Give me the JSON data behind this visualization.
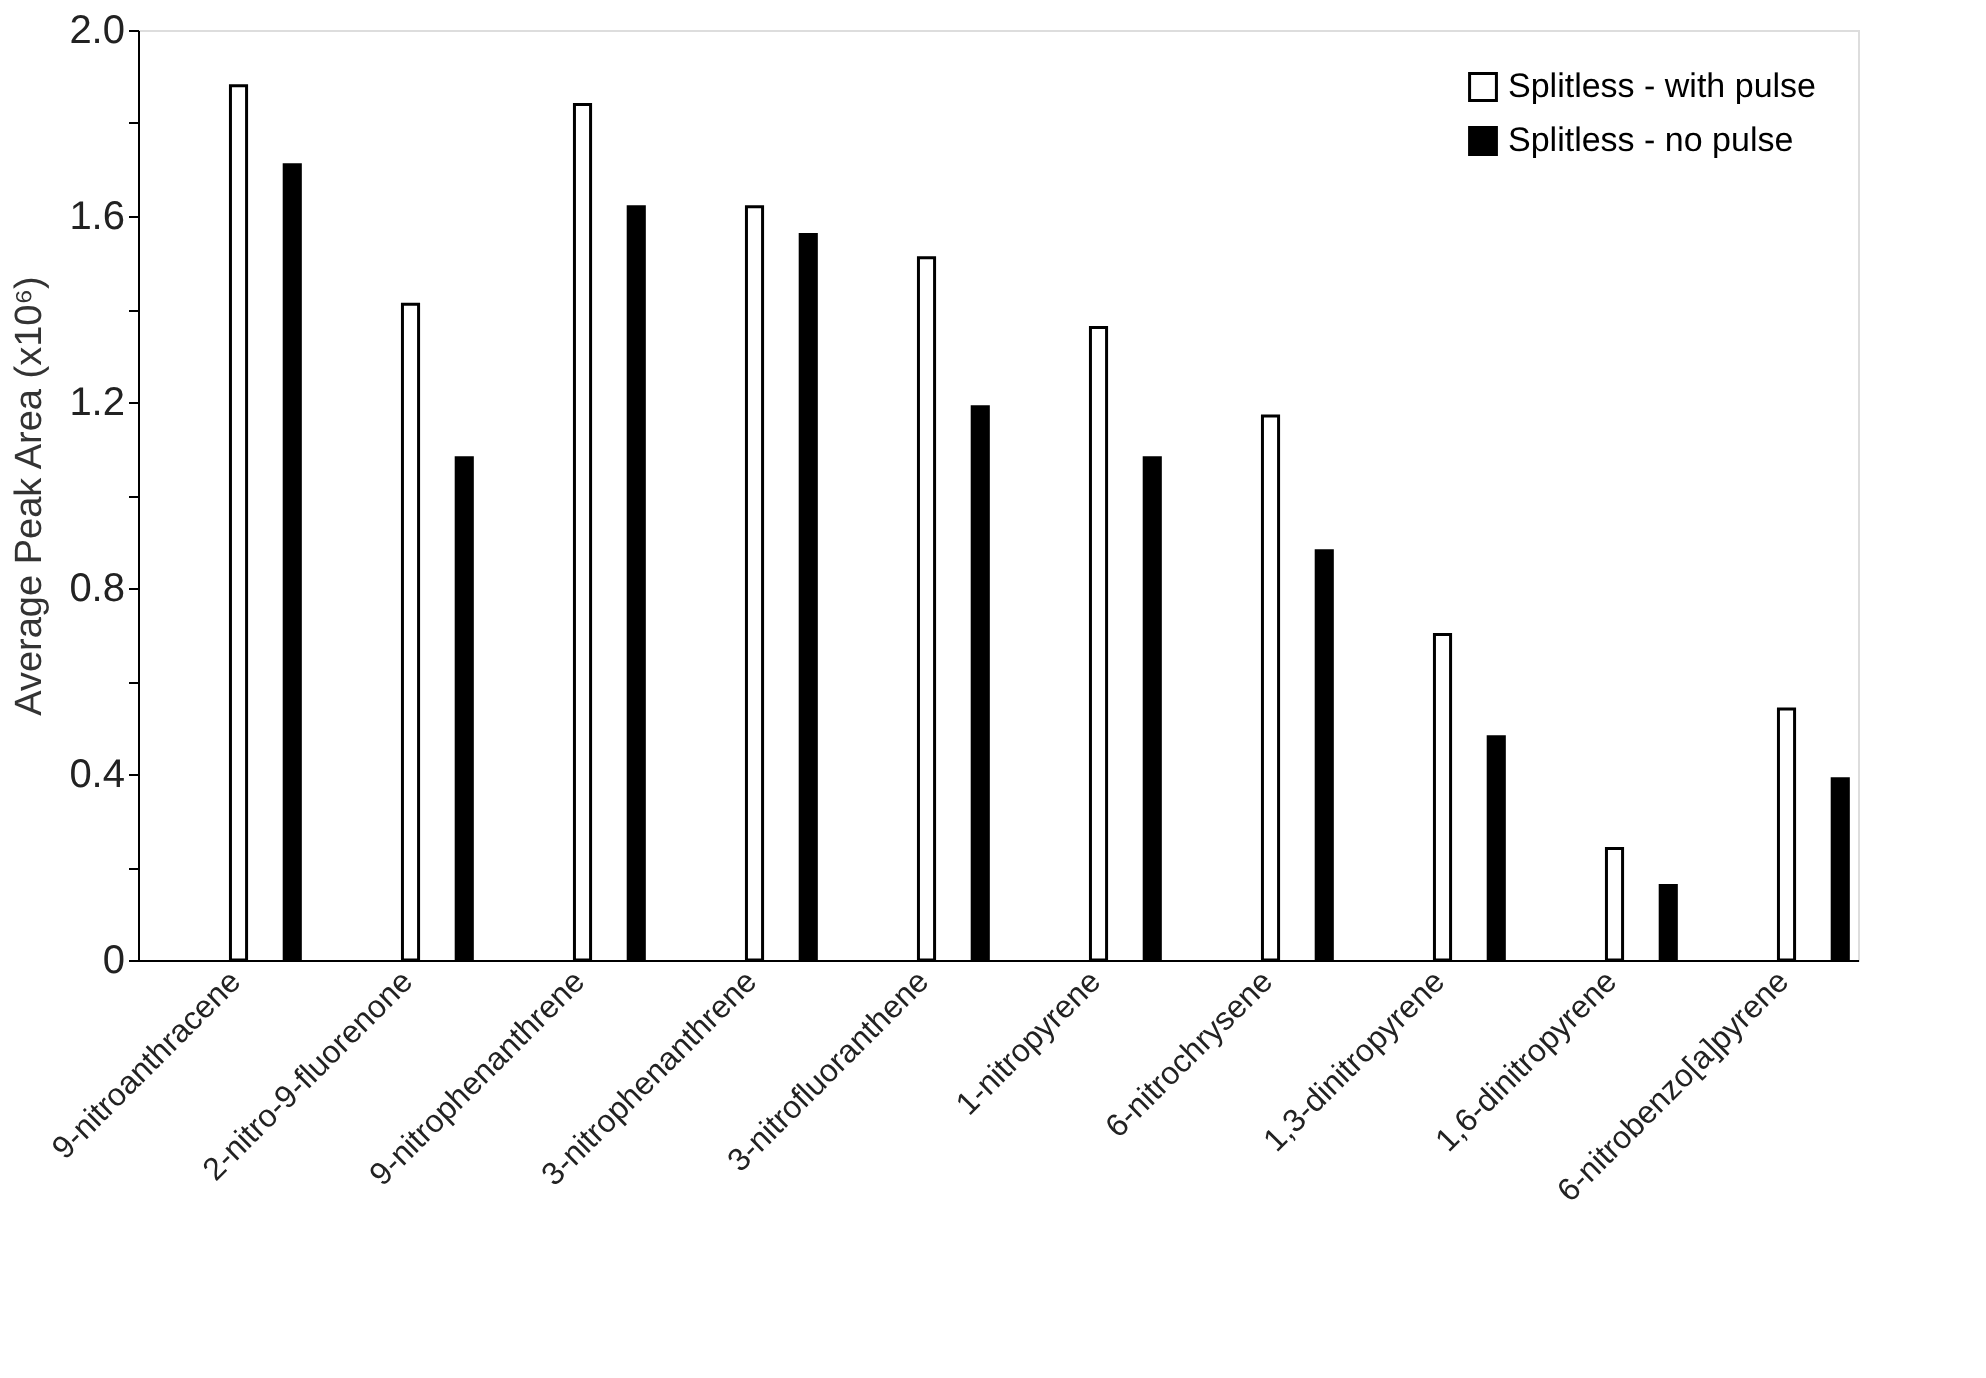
{
  "chart_data": {
    "type": "bar",
    "ylabel": "Average Peak Area (x10⁶)",
    "categories": [
      "9-nitroanthracene",
      "2-nitro-9-fluorenone",
      "9-nitrophenanthrene",
      "3-nitrophenanthrene",
      "3-nitrofluoranthene",
      "1-nitropyrene",
      "6-nitrochrysene",
      "1,3-dinitropyrene",
      "1,6-dinitropyrene",
      "6-nitrobenzo[a]pyrene"
    ],
    "series": [
      {
        "name": "Splitless - with pulse",
        "color": "#ffffff",
        "values": [
          1.88,
          1.41,
          1.84,
          1.62,
          1.51,
          1.36,
          1.17,
          0.7,
          0.24,
          0.54
        ]
      },
      {
        "name": "Splitless - no pulse",
        "color": "#000000",
        "values": [
          1.71,
          1.08,
          1.62,
          1.56,
          1.19,
          1.08,
          0.88,
          0.48,
          0.16,
          0.39
        ]
      }
    ],
    "ylim": [
      0,
      2
    ],
    "yticks": [
      0,
      {
        "value": 0.2,
        "label": null
      },
      0.4,
      {
        "value": 0.6,
        "label": null
      },
      0.8,
      {
        "value": 1.0,
        "label": null
      },
      1.2,
      {
        "value": 1.4,
        "label": null
      },
      1.6,
      {
        "value": 1.8,
        "label": null
      },
      {
        "value": 2.0,
        "label": "2.0"
      }
    ],
    "grid": false,
    "legend": "top right"
  }
}
